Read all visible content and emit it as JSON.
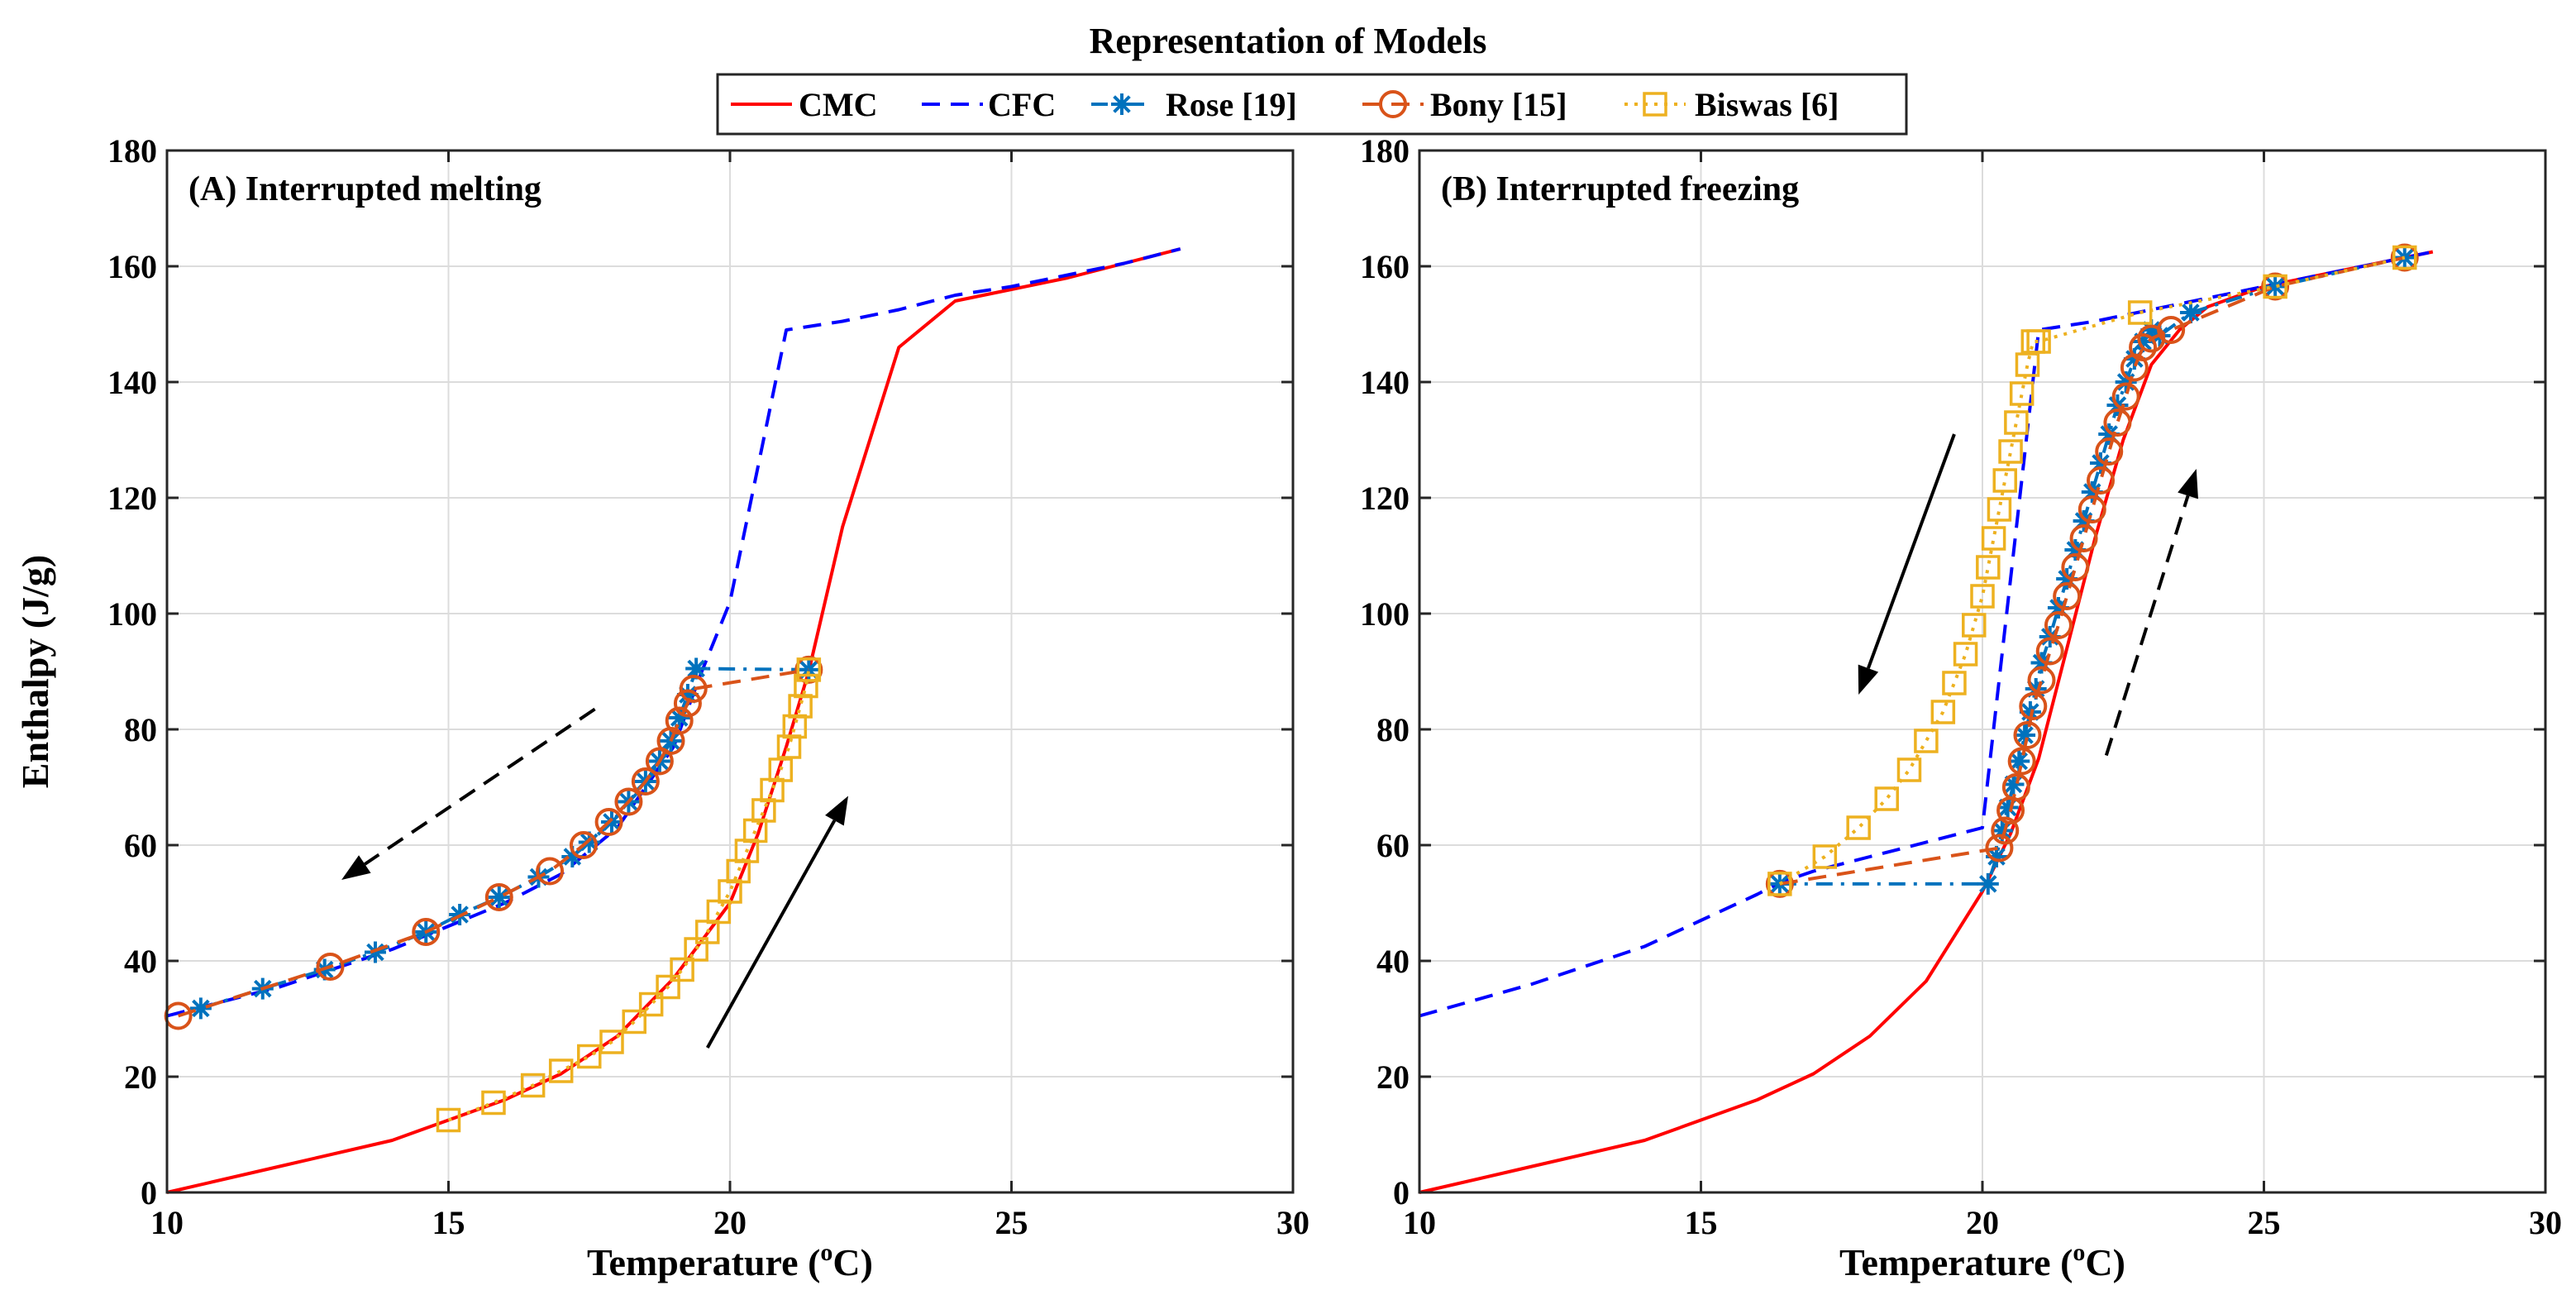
{
  "chart_data": {
    "type": "line",
    "title": "Representation of Models",
    "legend": {
      "placement": "top-center",
      "entries": [
        "CMC",
        "CFC",
        "Rose [19]",
        "Bony [15]",
        "Biswas [6]"
      ]
    },
    "series_styles": {
      "CMC": {
        "color": "#ff0000",
        "line": "solid",
        "marker": "none"
      },
      "CFC": {
        "color": "#0000ff",
        "line": "dashed",
        "marker": "none"
      },
      "Rose [19]": {
        "color": "#0072bd",
        "line": "dashdot",
        "marker": "asterisk"
      },
      "Bony [15]": {
        "color": "#d95319",
        "line": "dashed",
        "marker": "circle"
      },
      "Biswas [6]": {
        "color": "#edb120",
        "line": "dotted",
        "marker": "square"
      }
    },
    "panels": [
      {
        "label": "(A)  Interrupted melting",
        "xlabel": "Temperature (",
        "xlabel_sup": "o",
        "xlabel_end": "C)",
        "ylabel": "Enthalpy (J/g)",
        "xlim": [
          10,
          30
        ],
        "ylim": [
          0,
          180
        ],
        "xticks": [
          "10",
          "15",
          "20",
          "25",
          "30"
        ],
        "yticks": [
          "0",
          "20",
          "40",
          "60",
          "80",
          "100",
          "120",
          "140",
          "160",
          "180"
        ],
        "grid": true,
        "series": [
          {
            "name": "CMC",
            "x": [
              10,
              12,
              14,
              15,
              16,
              17,
              18,
              19,
              20,
              20.5,
              21,
              21.4,
              22,
              23,
              24,
              25,
              26,
              27,
              28
            ],
            "y": [
              0,
              4.5,
              9,
              12.5,
              16,
              20.5,
              27,
              37,
              50,
              62,
              77,
              90,
              115,
              146,
              154,
              156,
              158,
              160.5,
              163
            ]
          },
          {
            "name": "CFC",
            "x": [
              10,
              12,
              14,
              15,
              16,
              17,
              18,
              19,
              19.5,
              20,
              21,
              22,
              23,
              24,
              25,
              26,
              27,
              28
            ],
            "y": [
              30.5,
              35.5,
              42,
              46,
              50,
              55,
              63,
              77,
              90,
              102,
              149,
              150.5,
              152.5,
              155,
              156.5,
              158.5,
              160.5,
              163
            ]
          },
          {
            "name": "Rose [19]",
            "x": [
              10.6,
              11.7,
              12.8,
              13.7,
              14.6,
              15.2,
              15.9,
              16.6,
              17.2,
              17.5,
              17.9,
              18.2,
              18.5,
              18.75,
              18.95,
              19.1,
              19.25,
              19.4,
              21.4
            ],
            "y": [
              31.8,
              35.2,
              38.5,
              41.5,
              45,
              48,
              51,
              54.5,
              58,
              60.5,
              64,
              67.5,
              71,
              74.5,
              78,
              82,
              86,
              90.5,
              90.3
            ]
          },
          {
            "name": "Bony [15]",
            "x": [
              10.2,
              12.9,
              14.6,
              15.9,
              16.8,
              17.4,
              17.85,
              18.2,
              18.5,
              18.75,
              18.95,
              19.1,
              19.25,
              19.35,
              21.4
            ],
            "y": [
              30.5,
              39,
              45,
              51,
              55.5,
              60,
              64,
              67.5,
              71,
              74.5,
              78,
              81.5,
              84.5,
              87,
              90.3
            ]
          },
          {
            "name": "Biswas [6]",
            "x": [
              15,
              15.8,
              16.5,
              17,
              17.5,
              17.9,
              18.3,
              18.6,
              18.9,
              19.15,
              19.4,
              19.6,
              19.8,
              20,
              20.15,
              20.3,
              20.45,
              20.6,
              20.75,
              20.9,
              21.05,
              21.15,
              21.25,
              21.35,
              21.4
            ],
            "y": [
              12.5,
              15.5,
              18.5,
              21,
              23.5,
              26,
              29.5,
              32.5,
              35.5,
              38.5,
              42,
              45,
              48.5,
              52,
              55.5,
              59,
              62.5,
              66,
              69.5,
              73,
              77,
              80.5,
              84,
              87.5,
              90.3
            ]
          }
        ],
        "annotations": [
          {
            "type": "arrow",
            "style": "dashed",
            "from": [
              17.6,
              83.5
            ],
            "to": [
              13.1,
              54
            ]
          },
          {
            "type": "arrow",
            "style": "solid",
            "from": [
              19.6,
              25
            ],
            "to": [
              22.1,
              68.5
            ]
          }
        ]
      },
      {
        "label": "(B)  Interrupted freezing",
        "xlabel": "Temperature (",
        "xlabel_sup": "o",
        "xlabel_end": "C)",
        "ylabel": "",
        "xlim": [
          10,
          30
        ],
        "ylim": [
          0,
          180
        ],
        "xticks": [
          "10",
          "15",
          "20",
          "25",
          "30"
        ],
        "yticks": [
          "0",
          "20",
          "40",
          "60",
          "80",
          "100",
          "120",
          "140",
          "160",
          "180"
        ],
        "grid": true,
        "series": [
          {
            "name": "CMC",
            "x": [
              10,
              12,
              14,
              16,
              17,
              18,
              19,
              20,
              20.5,
              21,
              21.5,
              22,
              22.5,
              23,
              23.5,
              24,
              25,
              26,
              27,
              28
            ],
            "y": [
              0,
              4.5,
              9,
              16,
              20.5,
              27,
              36.5,
              52,
              62,
              75,
              94,
              113,
              130,
              143,
              149,
              153,
              156.5,
              158.5,
              160.5,
              162.5
            ]
          },
          {
            "name": "CFC",
            "x": [
              10,
              12,
              14,
              15,
              16,
              16.4,
              17,
              18,
              19,
              20,
              21,
              22,
              23,
              24,
              25,
              26,
              27,
              28
            ],
            "y": [
              30.5,
              36,
              42.5,
              47,
              51.5,
              53.5,
              55.5,
              58,
              60.5,
              63,
              149,
              150.5,
              152.5,
              154.5,
              156.5,
              158.5,
              160.5,
              162.5
            ]
          },
          {
            "name": "Rose [19]",
            "x": [
              16.4,
              20.1,
              20.25,
              20.35,
              20.45,
              20.55,
              20.65,
              20.75,
              20.85,
              20.95,
              21.05,
              21.2,
              21.35,
              21.5,
              21.65,
              21.8,
              21.95,
              22.1,
              22.25,
              22.4,
              22.55,
              22.7,
              22.85,
              23.0,
              23.15,
              23.7,
              25.2,
              27.5
            ],
            "y": [
              53.3,
              53.3,
              58,
              62.5,
              66.5,
              70.5,
              74.5,
              79,
              83,
              87,
              91.5,
              96,
              101,
              106,
              111,
              116,
              121,
              126,
              131,
              136,
              140,
              144,
              147,
              149,
              148,
              152,
              156.5,
              161.5
            ]
          },
          {
            "name": "Bony [15]",
            "x": [
              16.4,
              20.3,
              20.4,
              20.5,
              20.6,
              20.7,
              20.8,
              20.9,
              21.05,
              21.2,
              21.35,
              21.5,
              21.65,
              21.8,
              21.95,
              22.1,
              22.25,
              22.4,
              22.55,
              22.7,
              22.85,
              23.0,
              23.35,
              25.2,
              27.5
            ],
            "y": [
              53.3,
              59.5,
              62.5,
              66,
              70,
              74.5,
              79,
              84,
              88.5,
              93.5,
              98,
              103,
              108,
              113,
              118,
              123,
              128,
              133,
              137.5,
              142.5,
              146,
              147.5,
              149,
              156.5,
              161.5
            ]
          },
          {
            "name": "Biswas [6]",
            "x": [
              16.4,
              17.2,
              17.8,
              18.3,
              18.7,
              19.0,
              19.3,
              19.5,
              19.7,
              19.85,
              20.0,
              20.1,
              20.2,
              20.3,
              20.4,
              20.5,
              20.6,
              20.7,
              20.8,
              20.9,
              21.0,
              22.8,
              25.2,
              27.5
            ],
            "y": [
              53.3,
              58,
              63,
              68,
              73,
              78,
              83,
              88,
              93,
              98,
              103,
              108,
              113,
              118,
              123,
              128,
              133,
              138,
              143,
              147,
              147,
              152,
              156.5,
              161.5
            ]
          }
        ],
        "annotations": [
          {
            "type": "arrow",
            "style": "solid",
            "from": [
              19.5,
              131
            ],
            "to": [
              17.8,
              86
            ]
          },
          {
            "type": "arrow",
            "style": "dashed",
            "from": [
              22.2,
              75.5
            ],
            "to": [
              23.8,
              125
            ]
          }
        ]
      }
    ]
  }
}
